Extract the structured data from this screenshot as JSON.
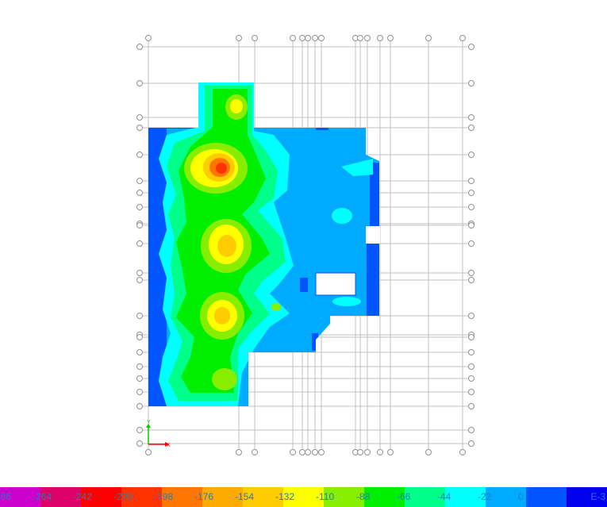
{
  "axes": {
    "x_label": "X",
    "y_label": "Y"
  },
  "legend": {
    "unit": "E-3",
    "levels": [
      {
        "label": "-286",
        "color": "#cc00cc"
      },
      {
        "label": "-264",
        "color": "#dd0066"
      },
      {
        "label": "-242",
        "color": "#ff0000"
      },
      {
        "label": "-220",
        "color": "#ff3300"
      },
      {
        "label": "-198",
        "color": "#ff7700"
      },
      {
        "label": "-176",
        "color": "#ffaa00"
      },
      {
        "label": "-154",
        "color": "#ffcc00"
      },
      {
        "label": "-132",
        "color": "#ffff00"
      },
      {
        "label": "-110",
        "color": "#88ee00"
      },
      {
        "label": "-88",
        "color": "#00ee00"
      },
      {
        "label": "-66",
        "color": "#00ff88"
      },
      {
        "label": "-44",
        "color": "#00ffff"
      },
      {
        "label": "-22",
        "color": "#00aaff"
      },
      {
        "label": "0",
        "color": "#0055ff"
      },
      {
        "label": "",
        "color": "#0000ee"
      }
    ]
  }
}
